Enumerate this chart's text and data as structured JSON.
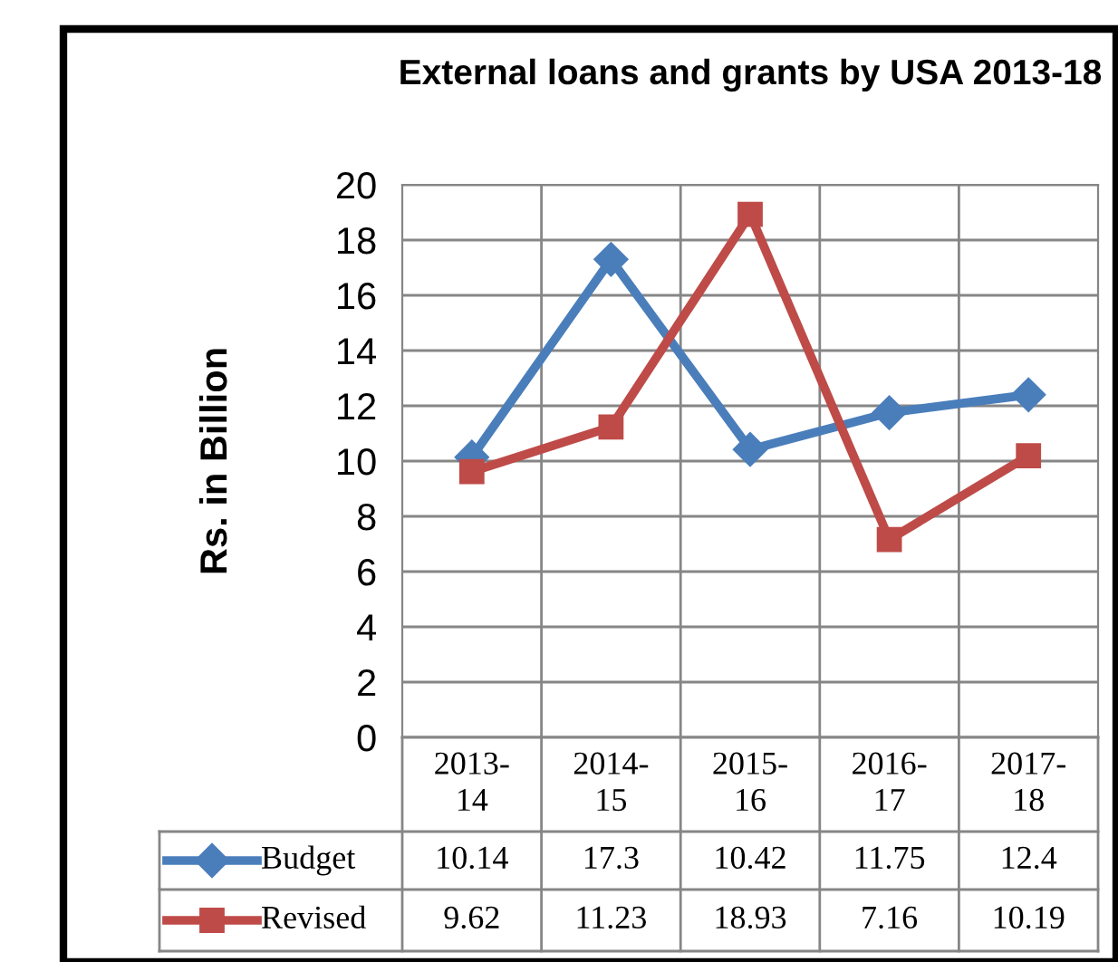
{
  "chart_data": {
    "type": "line",
    "title": "External loans and grants by USA 2013-18",
    "ylabel": "Rs. in Billion",
    "categories": [
      "2013-14",
      "2014-15",
      "2015-16",
      "2016-17",
      "2017-18"
    ],
    "series": [
      {
        "name": "Budget",
        "color": "#4a7ebb",
        "marker": "diamond",
        "values": [
          10.14,
          17.3,
          10.42,
          11.75,
          12.4
        ]
      },
      {
        "name": "Revised",
        "color": "#be4b48",
        "marker": "square",
        "values": [
          9.62,
          11.23,
          18.93,
          7.16,
          10.19
        ]
      }
    ],
    "ylim": [
      0,
      20
    ],
    "yticks": [
      0,
      2,
      4,
      6,
      8,
      10,
      12,
      14,
      16,
      18,
      20
    ],
    "grid": true,
    "legend": "bottom",
    "data_labels": true,
    "line_style": "solid"
  }
}
